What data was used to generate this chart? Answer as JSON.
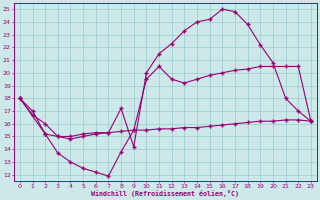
{
  "bg_color": "#cce8e8",
  "line_color": "#990077",
  "xlabel": "Windchill (Refroidissement éolien,°C)",
  "xlim": [
    -0.5,
    23.5
  ],
  "ylim": [
    11.5,
    25.5
  ],
  "xticks": [
    0,
    1,
    2,
    3,
    4,
    5,
    6,
    7,
    8,
    9,
    10,
    11,
    12,
    13,
    14,
    15,
    16,
    17,
    18,
    19,
    20,
    21,
    22,
    23
  ],
  "yticks": [
    12,
    13,
    14,
    15,
    16,
    17,
    18,
    19,
    20,
    21,
    22,
    23,
    24,
    25
  ],
  "grid_color": "#99cccc",
  "curve1_x": [
    0,
    1,
    2,
    3,
    4,
    5,
    6,
    7,
    8,
    9,
    10,
    11,
    12,
    13,
    14,
    15,
    16,
    17,
    18,
    19,
    20,
    21,
    22,
    23
  ],
  "curve1_y": [
    18,
    16.7,
    16.0,
    15.0,
    14.8,
    15.0,
    15.2,
    15.3,
    15.4,
    15.5,
    15.5,
    15.6,
    15.6,
    15.7,
    15.7,
    15.8,
    15.9,
    16.0,
    16.1,
    16.2,
    16.2,
    16.3,
    16.3,
    16.2
  ],
  "curve2_x": [
    0,
    1,
    2,
    3,
    4,
    5,
    6,
    7,
    8,
    9,
    10,
    11,
    12,
    13,
    14,
    15,
    16,
    17,
    18,
    19,
    20,
    21,
    22,
    23
  ],
  "curve2_y": [
    18,
    17.0,
    15.2,
    13.7,
    13.0,
    12.5,
    12.2,
    11.9,
    13.8,
    15.5,
    19.5,
    20.5,
    19.5,
    19.2,
    19.5,
    19.8,
    20.0,
    20.2,
    20.3,
    20.5,
    20.5,
    20.5,
    20.5,
    16.2
  ],
  "curve3_x": [
    0,
    2,
    3,
    4,
    5,
    6,
    7,
    8,
    9,
    10,
    11,
    12,
    13,
    14,
    15,
    16,
    17,
    18,
    19,
    20,
    21,
    22,
    23
  ],
  "curve3_y": [
    18,
    15.2,
    15.0,
    15.0,
    15.2,
    15.3,
    15.3,
    17.2,
    14.2,
    20.0,
    21.5,
    22.3,
    23.3,
    24.0,
    24.2,
    25.0,
    24.8,
    23.8,
    22.2,
    20.8,
    18.0,
    17.0,
    16.2
  ]
}
